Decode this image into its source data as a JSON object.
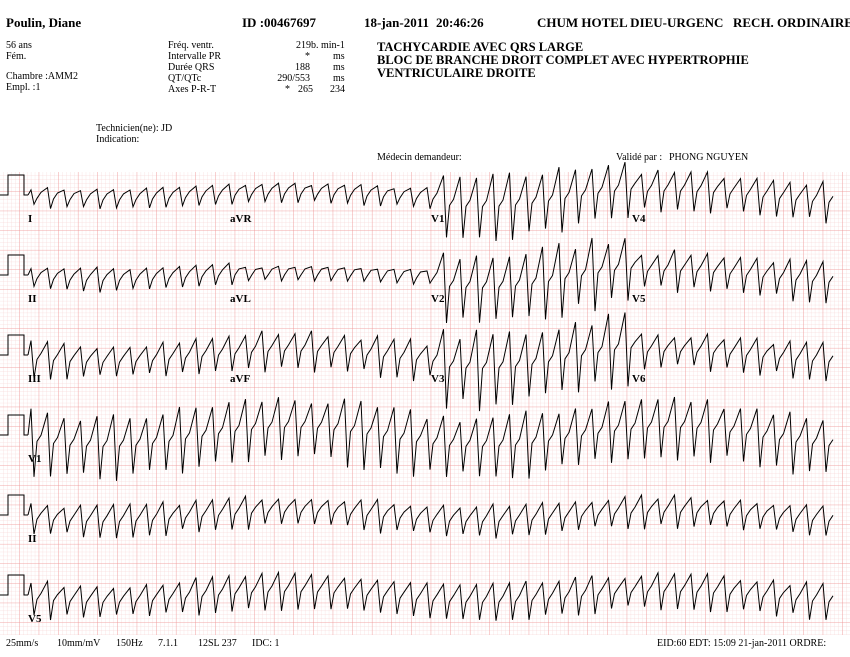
{
  "header": {
    "patient": "Poulin, Diane",
    "id": "ID :00467697",
    "date": "18-jan-2011",
    "time": "20:46:26",
    "site": "CHUM HOTEL DIEU-URGENC",
    "order": "RECH. ORDINAIRE"
  },
  "patient_info": [
    "56 ans",
    "Fém.",
    "Chambre :AMM2",
    "Empl. :1"
  ],
  "measurements": [
    [
      "Fréq. ventr.",
      "219b. min-1"
    ],
    [
      "Intervalle PR",
      "*",
      "ms"
    ],
    [
      "Durée QRS",
      "188",
      "ms"
    ],
    [
      "QT/QTc",
      "290/553",
      "ms"
    ],
    [
      "Axes P-R-T",
      "*",
      "265",
      "234"
    ]
  ],
  "interpretation": [
    "TACHYCARDIE AVEC QRS LARGE",
    "BLOC DE BRANCHE DROIT COMPLET AVEC HYPERTROPHIE",
    "VENTRICULAIRE DROITE"
  ],
  "technician": "Technicien(ne): JD",
  "indication": "Indication:",
  "requesting_physician": "Médecin demandeur:",
  "validated_by": "Validé par :",
  "validator": "PHONG NGUYEN",
  "leads": [
    [
      "I",
      "aVR",
      "V1",
      "V4"
    ],
    [
      "II",
      "aVL",
      "V2",
      "V5"
    ],
    [
      "III",
      "aVF",
      "V3",
      "V6"
    ],
    [
      "V1"
    ],
    [
      "II"
    ],
    [
      "V5"
    ]
  ],
  "footer": [
    "25mm/s",
    "10mm/mV",
    "150Hz",
    "7.1.1",
    "12SL 237",
    "IDC: 1",
    "EID:60 EDT: 15:09 21-jan-2011 ORDRE:"
  ]
}
